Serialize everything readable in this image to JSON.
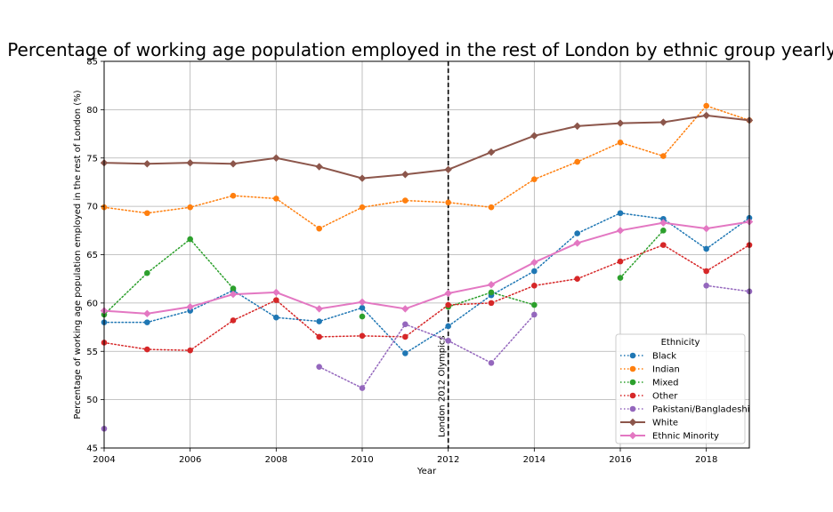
{
  "chart_data": {
    "type": "line",
    "title": "Percentage of working age population employed in the rest of London by ethnic group yearly",
    "xlabel": "Year",
    "ylabel": "Percentage of working age population employed in the rest of London (%)",
    "xlim": [
      2004,
      2019
    ],
    "ylim": [
      45,
      85
    ],
    "xticks": [
      2004,
      2006,
      2008,
      2010,
      2012,
      2014,
      2016,
      2018
    ],
    "yticks": [
      45,
      50,
      55,
      60,
      65,
      70,
      75,
      80,
      85
    ],
    "grid": true,
    "legend": {
      "title": "Ethnicity",
      "position": "lower-right"
    },
    "annotation": {
      "x": 2012,
      "label": "London 2012 Olympics",
      "style": "dashed-vertical-line"
    },
    "series": [
      {
        "name": "Black",
        "color": "#1f77b4",
        "style": "dotted",
        "marker": "circle",
        "x": [
          2004,
          2005,
          2006,
          2007,
          2008,
          2009,
          2010,
          2011,
          2012,
          2013,
          2014,
          2015,
          2016,
          2017,
          2018,
          2019
        ],
        "y": [
          58.0,
          58.0,
          59.2,
          61.3,
          58.5,
          58.1,
          59.5,
          54.8,
          57.6,
          60.8,
          63.3,
          67.2,
          69.3,
          68.7,
          65.6,
          68.8
        ]
      },
      {
        "name": "Indian",
        "color": "#ff7f0e",
        "style": "dotted",
        "marker": "circle",
        "x": [
          2004,
          2005,
          2006,
          2007,
          2008,
          2009,
          2010,
          2011,
          2012,
          2013,
          2014,
          2015,
          2016,
          2017,
          2018,
          2019
        ],
        "y": [
          69.9,
          69.3,
          69.9,
          71.1,
          70.8,
          67.7,
          69.9,
          70.6,
          70.4,
          69.9,
          72.8,
          74.6,
          76.6,
          75.2,
          80.4,
          78.9
        ]
      },
      {
        "name": "Mixed",
        "color": "#2ca02c",
        "style": "dotted",
        "marker": "circle",
        "x": [
          2004,
          2005,
          2006,
          2007,
          2008,
          2009,
          2010,
          2011,
          2012,
          2013,
          2014,
          2015,
          2016,
          2017,
          2018,
          2019
        ],
        "y": [
          58.8,
          63.1,
          66.6,
          61.5,
          null,
          null,
          58.6,
          null,
          59.6,
          61.1,
          59.8,
          null,
          62.6,
          67.5,
          null,
          null
        ]
      },
      {
        "name": "Other",
        "color": "#d62728",
        "style": "dotted",
        "marker": "circle",
        "x": [
          2004,
          2005,
          2006,
          2007,
          2008,
          2009,
          2010,
          2011,
          2012,
          2013,
          2014,
          2015,
          2016,
          2017,
          2018,
          2019
        ],
        "y": [
          55.9,
          55.2,
          55.1,
          58.2,
          60.3,
          56.5,
          56.6,
          56.5,
          59.8,
          60.0,
          61.8,
          62.5,
          64.3,
          66.0,
          63.3,
          66.0
        ]
      },
      {
        "name": "Pakistani/Bangladeshi",
        "color": "#9467bd",
        "style": "dotted",
        "marker": "circle",
        "x": [
          2004,
          2005,
          2006,
          2007,
          2008,
          2009,
          2010,
          2011,
          2012,
          2013,
          2014,
          2015,
          2016,
          2017,
          2018,
          2019
        ],
        "y": [
          47.0,
          null,
          null,
          null,
          null,
          53.4,
          51.2,
          57.8,
          56.1,
          53.8,
          58.8,
          null,
          null,
          null,
          61.8,
          61.2
        ]
      },
      {
        "name": "White",
        "color": "#8c564b",
        "style": "solid",
        "marker": "diamond",
        "x": [
          2004,
          2005,
          2006,
          2007,
          2008,
          2009,
          2010,
          2011,
          2012,
          2013,
          2014,
          2015,
          2016,
          2017,
          2018,
          2019
        ],
        "y": [
          74.5,
          74.4,
          74.5,
          74.4,
          75.0,
          74.1,
          72.9,
          73.3,
          73.8,
          75.6,
          77.3,
          78.3,
          78.6,
          78.7,
          79.4,
          78.9
        ]
      },
      {
        "name": "Ethnic Minority",
        "color": "#e377c2",
        "style": "solid",
        "marker": "diamond",
        "x": [
          2004,
          2005,
          2006,
          2007,
          2008,
          2009,
          2010,
          2011,
          2012,
          2013,
          2014,
          2015,
          2016,
          2017,
          2018,
          2019
        ],
        "y": [
          59.2,
          58.9,
          59.6,
          60.9,
          61.1,
          59.4,
          60.1,
          59.4,
          61.0,
          61.9,
          64.2,
          66.2,
          67.5,
          68.3,
          67.7,
          68.4
        ]
      }
    ]
  }
}
